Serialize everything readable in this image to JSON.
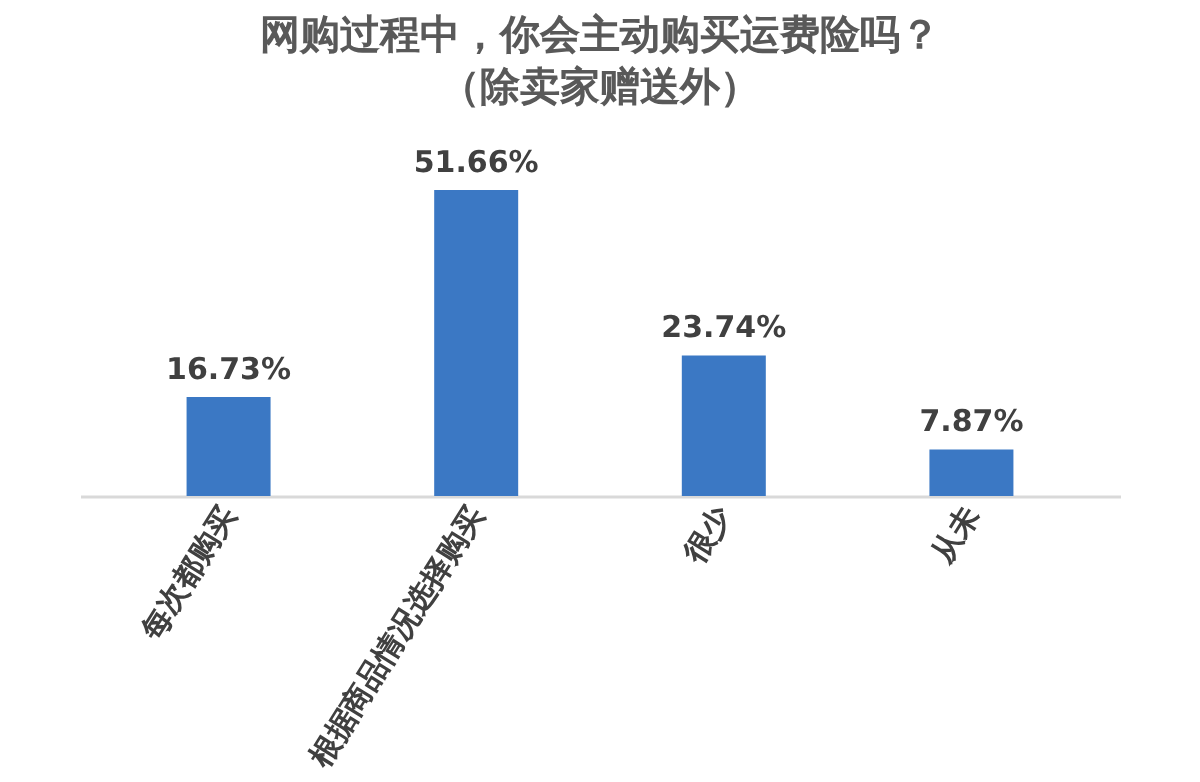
{
  "chart_data": {
    "type": "bar",
    "title": "网购过程中，你会主动购买运费险吗？",
    "subtitle": "（除卖家赠送外）",
    "categories": [
      "每次都购买",
      "根据商品情况选择购买",
      "很少",
      "从未"
    ],
    "values": [
      16.73,
      51.66,
      23.74,
      7.87
    ],
    "value_labels": [
      "16.73%",
      "51.66%",
      "23.74%",
      "7.87%"
    ],
    "color": "#3b78c4"
  }
}
